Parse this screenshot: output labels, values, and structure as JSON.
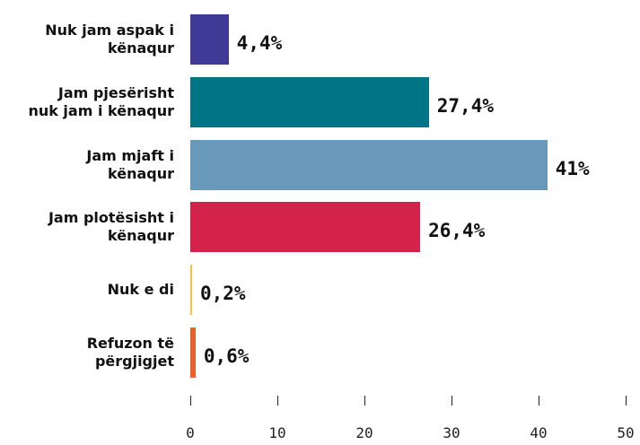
{
  "chart_data": {
    "type": "barh",
    "categories": [
      "Nuk jam aspak i\nkënaqur",
      "Jam pjesërisht\nnuk jam i kënaqur",
      "Jam mjaft i\nkënaqur",
      "Jam plotësisht i\nkënaqur",
      "Nuk e di",
      "Refuzon të\npërgjigjet"
    ],
    "values": [
      4.4,
      27.4,
      41,
      26.4,
      0.2,
      0.6
    ],
    "value_labels": [
      "4,4%",
      "27,4%",
      "41%",
      "26,4%",
      "0,2%",
      "0,6%"
    ],
    "colors": [
      "#3f3a96",
      "#007585",
      "#6899bb",
      "#d4234a",
      "#f5c342",
      "#e8602c"
    ],
    "xlim": [
      0,
      50
    ],
    "xticks": [
      0,
      10,
      20,
      30,
      40,
      50
    ]
  }
}
